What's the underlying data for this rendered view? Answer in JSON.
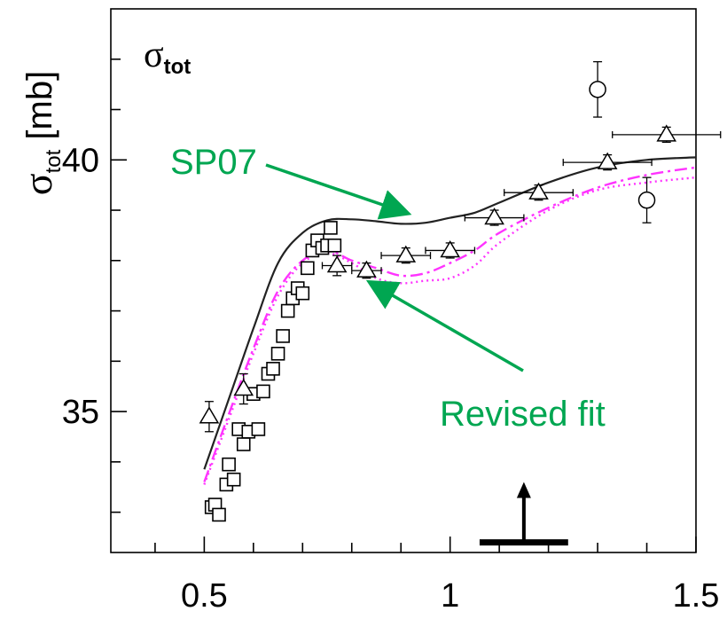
{
  "chart_data": {
    "type": "scatter",
    "title": "",
    "ylabel_symbol": "σ",
    "ylabel_sub": "tot",
    "ylabel_unit": " [mb]",
    "panel_label_symbol": "σ",
    "panel_label_sub": "tot",
    "xlim": [
      0.31,
      1.5
    ],
    "ylim": [
      32.2,
      43.0
    ],
    "x_ticks": [
      0.5,
      1,
      1.5
    ],
    "x_tick_labels": [
      "0.5",
      "1",
      "1.5"
    ],
    "y_ticks": [
      35,
      40
    ],
    "y_tick_labels": [
      "35",
      "40"
    ],
    "grid": false,
    "series": [
      {
        "name": "",
        "marker": "square",
        "points": [
          {
            "x": 0.515,
            "y": 33.1
          },
          {
            "x": 0.522,
            "y": 33.15
          },
          {
            "x": 0.53,
            "y": 32.95
          },
          {
            "x": 0.545,
            "y": 33.55
          },
          {
            "x": 0.55,
            "y": 33.95
          },
          {
            "x": 0.56,
            "y": 33.65
          },
          {
            "x": 0.57,
            "y": 34.65
          },
          {
            "x": 0.58,
            "y": 34.35
          },
          {
            "x": 0.59,
            "y": 34.6
          },
          {
            "x": 0.6,
            "y": 35.35
          },
          {
            "x": 0.61,
            "y": 34.65
          },
          {
            "x": 0.62,
            "y": 35.4
          },
          {
            "x": 0.63,
            "y": 35.75
          },
          {
            "x": 0.64,
            "y": 35.85
          },
          {
            "x": 0.65,
            "y": 36.15
          },
          {
            "x": 0.66,
            "y": 36.5
          },
          {
            "x": 0.67,
            "y": 37.0
          },
          {
            "x": 0.68,
            "y": 37.25
          },
          {
            "x": 0.69,
            "y": 37.45
          },
          {
            "x": 0.7,
            "y": 37.35
          },
          {
            "x": 0.71,
            "y": 37.85
          },
          {
            "x": 0.72,
            "y": 38.2
          },
          {
            "x": 0.73,
            "y": 38.4
          },
          {
            "x": 0.74,
            "y": 38.25
          },
          {
            "x": 0.75,
            "y": 38.3
          },
          {
            "x": 0.757,
            "y": 38.65
          },
          {
            "x": 0.765,
            "y": 38.3
          }
        ]
      },
      {
        "name": "",
        "marker": "triangle",
        "points": [
          {
            "x": 0.51,
            "y": 34.9,
            "yerr": 0.3
          },
          {
            "x": 0.58,
            "y": 35.45,
            "yerr": 0.3
          },
          {
            "x": 0.77,
            "y": 37.9,
            "xerr": 0.03,
            "yerr": 0.2
          },
          {
            "x": 0.83,
            "y": 37.8,
            "xerr": 0.03,
            "yerr": 0.15
          },
          {
            "x": 0.91,
            "y": 38.1,
            "xerr": 0.05,
            "yerr": 0.15
          },
          {
            "x": 1.0,
            "y": 38.2,
            "xerr": 0.05,
            "yerr": 0.15
          },
          {
            "x": 1.09,
            "y": 38.85,
            "xerr": 0.06,
            "yerr": 0.15
          },
          {
            "x": 1.18,
            "y": 39.35,
            "xerr": 0.07,
            "yerr": 0.15
          },
          {
            "x": 1.32,
            "y": 39.95,
            "xerr": 0.09,
            "yerr": 0.15
          },
          {
            "x": 1.44,
            "y": 40.5,
            "xerr": 0.11,
            "yerr": 0.15
          }
        ]
      },
      {
        "name": "",
        "marker": "circle",
        "points": [
          {
            "x": 1.3,
            "y": 41.4,
            "yerr": 0.55
          },
          {
            "x": 1.4,
            "y": 39.2,
            "yerr": 0.45
          }
        ]
      }
    ],
    "curves": [
      {
        "name": "SP07",
        "style": "solid",
        "color": "#222222",
        "x": [
          0.5,
          0.55,
          0.6,
          0.65,
          0.7,
          0.75,
          0.8,
          0.85,
          0.9,
          0.95,
          1.0,
          1.05,
          1.1,
          1.2,
          1.3,
          1.4,
          1.5
        ],
        "y": [
          33.85,
          35.25,
          36.65,
          37.95,
          38.55,
          38.8,
          38.82,
          38.78,
          38.73,
          38.75,
          38.85,
          38.95,
          39.15,
          39.55,
          39.85,
          40.0,
          40.05
        ]
      },
      {
        "name": "Revised fit",
        "style": "dashdot",
        "color": "#ff33ff",
        "x": [
          0.5,
          0.55,
          0.6,
          0.65,
          0.7,
          0.75,
          0.8,
          0.85,
          0.9,
          0.95,
          1.0,
          1.05,
          1.1,
          1.2,
          1.3,
          1.4,
          1.5
        ],
        "y": [
          33.6,
          34.95,
          36.25,
          37.4,
          38.0,
          38.2,
          38.0,
          37.85,
          37.7,
          37.75,
          37.95,
          38.2,
          38.55,
          39.05,
          39.45,
          39.7,
          39.85
        ]
      },
      {
        "name": "",
        "style": "dotted",
        "color": "#ff33ff",
        "x": [
          0.5,
          0.55,
          0.6,
          0.65,
          0.7,
          0.75,
          0.8,
          0.85,
          0.9,
          0.95,
          1.0,
          1.05,
          1.1,
          1.2,
          1.3,
          1.4,
          1.5
        ],
        "y": [
          33.55,
          34.85,
          36.15,
          37.3,
          37.95,
          38.15,
          37.95,
          37.65,
          37.55,
          37.6,
          37.65,
          37.9,
          38.35,
          39.0,
          39.4,
          39.55,
          39.65
        ]
      }
    ],
    "annotations": [
      {
        "text": "SP07",
        "color": "#00a651",
        "arrow_to": {
          "x": 0.91,
          "y": 38.95
        }
      },
      {
        "text": "Revised fit",
        "color": "#00a651",
        "arrow_to": {
          "x": 0.84,
          "y": 37.55
        }
      }
    ],
    "marker_bar": {
      "x": 1.15,
      "x_from": 1.06,
      "x_to": 1.24,
      "y": 32.4,
      "arrow_to_y": 33.6
    }
  }
}
